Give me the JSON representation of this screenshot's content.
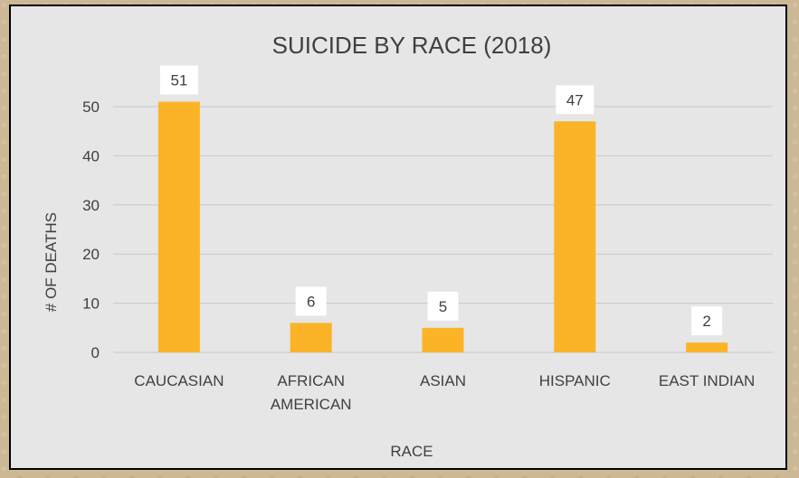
{
  "chart_data": {
    "type": "bar",
    "title": "SUICIDE BY RACE (2018)",
    "xlabel": "RACE",
    "ylabel": "# OF DEATHS",
    "categories": [
      [
        "CAUCASIAN"
      ],
      [
        "AFRICAN",
        "AMERICAN"
      ],
      [
        "ASIAN"
      ],
      [
        "HISPANIC"
      ],
      [
        "EAST INDIAN"
      ]
    ],
    "values": [
      51,
      6,
      5,
      47,
      2
    ],
    "ylim": [
      0,
      55
    ],
    "yticks": [
      0,
      10,
      20,
      30,
      40,
      50
    ],
    "grid": true,
    "legend": "none",
    "bar_color": "#fbb427",
    "data_labels": true
  }
}
